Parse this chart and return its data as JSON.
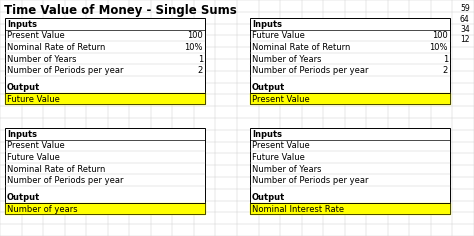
{
  "title": "Time Value of Money - Single Sums",
  "side_numbers": [
    "59",
    "64",
    "34",
    "12"
  ],
  "top_left_box": {
    "header": "Inputs",
    "rows": [
      [
        "Present Value",
        "100"
      ],
      [
        "Nominal Rate of Return",
        "10%"
      ],
      [
        "Number of Years",
        "1"
      ],
      [
        "Number of Periods per year",
        "2"
      ]
    ],
    "output_label": "Output",
    "output_value": "Future Value"
  },
  "top_right_box": {
    "header": "Inputs",
    "rows": [
      [
        "Future Value",
        "100"
      ],
      [
        "Nominal Rate of Return",
        "10%"
      ],
      [
        "Number of Years",
        "1"
      ],
      [
        "Number of Periods per year",
        "2"
      ]
    ],
    "output_label": "Output",
    "output_value": "Present Value"
  },
  "bottom_left_box": {
    "header": "Inputs",
    "rows": [
      [
        "Present Value",
        ""
      ],
      [
        "Future Value",
        ""
      ],
      [
        "Nominal Rate of Return",
        ""
      ],
      [
        "Number of Periods per year",
        ""
      ]
    ],
    "output_label": "Output",
    "output_value": "Number of years"
  },
  "bottom_right_box": {
    "header": "Inputs",
    "rows": [
      [
        "Present Value",
        ""
      ],
      [
        "Future Value",
        ""
      ],
      [
        "Number of Years",
        ""
      ],
      [
        "Number of Periods per year",
        ""
      ]
    ],
    "output_label": "Output",
    "output_value": "Nominal Interest Rate"
  },
  "highlight_color": "#FFFF00",
  "border_color": "#000000",
  "bg_color": "#FFFFFF",
  "grid_color": "#C8C8C8",
  "title_fontsize": 8.5,
  "cell_fontsize": 6.0
}
